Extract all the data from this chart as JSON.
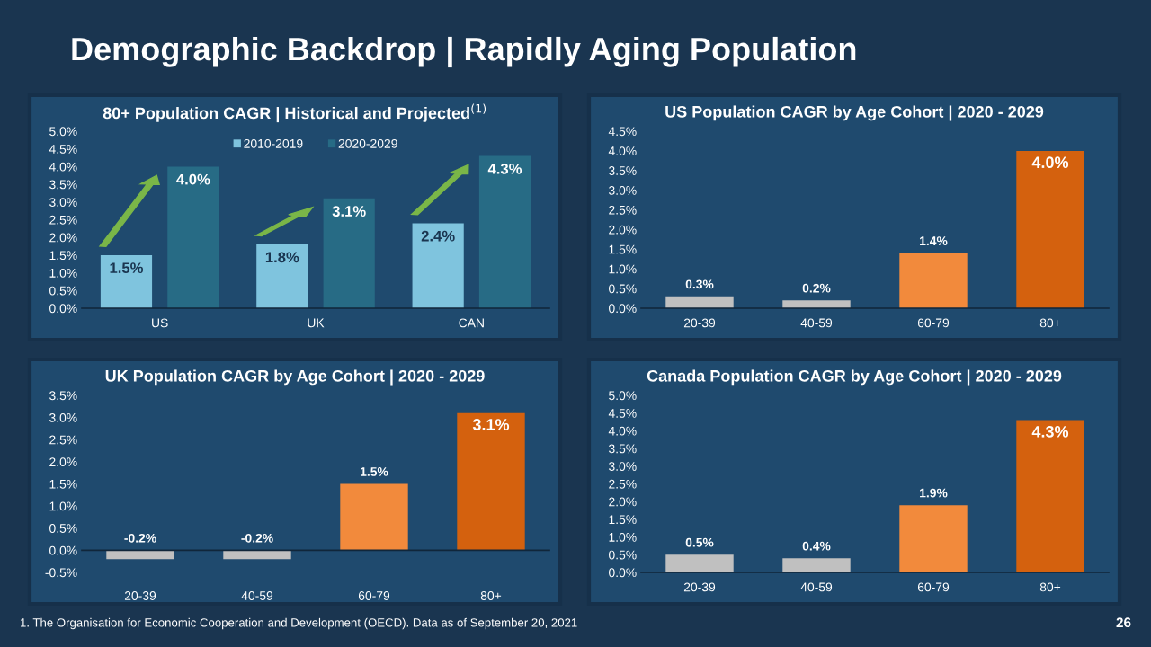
{
  "chart_data": [
    {
      "type": "bar",
      "title": "80+ Population CAGR | Historical and Projected$^{(1)}$",
      "categories": [
        "US",
        "UK",
        "CAN"
      ],
      "series": [
        {
          "name": "2010-2019",
          "color": "#7fc4de",
          "values": [
            1.5,
            1.8,
            2.4
          ],
          "value_labels": [
            "1.5%",
            "1.8%",
            "2.4%"
          ]
        },
        {
          "name": "2020-2029",
          "color": "#276b85",
          "values": [
            4.0,
            3.1,
            4.3
          ],
          "value_labels": [
            "4.0%",
            "3.1%",
            "4.3%"
          ]
        }
      ],
      "ylim": [
        0,
        5.0
      ],
      "yticks": [
        {
          "value": 0,
          "label": "0.0%"
        },
        {
          "value": 0.5,
          "label": "0.5%"
        },
        {
          "value": 1.0,
          "label": "1.0%"
        },
        {
          "value": 1.5,
          "label": "1.5%"
        },
        {
          "value": 2.0,
          "label": "2.0%"
        },
        {
          "value": 2.5,
          "label": "2.5%"
        },
        {
          "value": 3.0,
          "label": "3.0%"
        },
        {
          "value": 3.5,
          "label": "3.5%"
        },
        {
          "value": 4.0,
          "label": "4.0%"
        },
        {
          "value": 4.5,
          "label": "4.5%"
        },
        {
          "value": 5.0,
          "label": "5.0%"
        }
      ],
      "legend": "top",
      "annotations": [
        "Demographic Backdrop | Rapidly Aging Population",
        "1. The Organisation for Economic Cooperation and Development (OECD). Data as of September 20, 2021",
        "26"
      ]
    },
    {
      "type": "bar",
      "title": "US Population CAGR by Age Cohort | 2020 - 2029",
      "categories": [
        "20-39",
        "40-59",
        "60-79",
        "80+"
      ],
      "values": [
        0.3,
        0.2,
        1.4,
        4.0
      ],
      "value_labels": [
        "0.3%",
        "0.2%",
        "1.4%",
        "4.0%"
      ],
      "colors": [
        "#c0c0c0",
        "#c0c0c0",
        "#f28a3c",
        "#d4610e"
      ],
      "ylim": [
        0,
        4.5
      ],
      "yticks": [
        {
          "value": 0,
          "label": "0.0%"
        },
        {
          "value": 0.5,
          "label": "0.5%"
        },
        {
          "value": 1.0,
          "label": "1.0%"
        },
        {
          "value": 1.5,
          "label": "1.5%"
        },
        {
          "value": 2.0,
          "label": "2.0%"
        },
        {
          "value": 2.5,
          "label": "2.5%"
        },
        {
          "value": 3.0,
          "label": "3.0%"
        },
        {
          "value": 3.5,
          "label": "3.5%"
        },
        {
          "value": 4.0,
          "label": "4.0%"
        },
        {
          "value": 4.5,
          "label": "4.5%"
        }
      ]
    },
    {
      "type": "bar",
      "title": "UK Population CAGR by Age Cohort | 2020 - 2029",
      "categories": [
        "20-39",
        "40-59",
        "60-79",
        "80+"
      ],
      "values": [
        -0.2,
        -0.2,
        1.5,
        3.1
      ],
      "value_labels": [
        "-0.2%",
        "-0.2%",
        "1.5%",
        "3.1%"
      ],
      "colors": [
        "#c0c0c0",
        "#c0c0c0",
        "#f28a3c",
        "#d4610e"
      ],
      "ylim": [
        -0.5,
        3.5
      ],
      "yticks": [
        {
          "value": -0.5,
          "label": "-0.5%"
        },
        {
          "value": 0,
          "label": "0.0%"
        },
        {
          "value": 0.5,
          "label": "0.5%"
        },
        {
          "value": 1.0,
          "label": "1.0%"
        },
        {
          "value": 1.5,
          "label": "1.5%"
        },
        {
          "value": 2.0,
          "label": "2.0%"
        },
        {
          "value": 2.5,
          "label": "2.5%"
        },
        {
          "value": 3.0,
          "label": "3.0%"
        },
        {
          "value": 3.5,
          "label": "3.5%"
        }
      ]
    },
    {
      "type": "bar",
      "title": "Canada Population CAGR by Age Cohort | 2020 - 2029",
      "categories": [
        "20-39",
        "40-59",
        "60-79",
        "80+"
      ],
      "values": [
        0.5,
        0.4,
        1.9,
        4.3
      ],
      "value_labels": [
        "0.5%",
        "0.4%",
        "1.9%",
        "4.3%"
      ],
      "colors": [
        "#c0c0c0",
        "#c0c0c0",
        "#f28a3c",
        "#d4610e"
      ],
      "ylim": [
        0,
        5.0
      ],
      "yticks": [
        {
          "value": 0,
          "label": "0.0%"
        },
        {
          "value": 0.5,
          "label": "0.5%"
        },
        {
          "value": 1.0,
          "label": "1.0%"
        },
        {
          "value": 1.5,
          "label": "1.5%"
        },
        {
          "value": 2.0,
          "label": "2.0%"
        },
        {
          "value": 2.5,
          "label": "2.5%"
        },
        {
          "value": 3.0,
          "label": "3.0%"
        },
        {
          "value": 3.5,
          "label": "3.5%"
        },
        {
          "value": 4.0,
          "label": "4.0%"
        },
        {
          "value": 4.5,
          "label": "4.5%"
        },
        {
          "value": 5.0,
          "label": "5.0%"
        }
      ]
    }
  ]
}
